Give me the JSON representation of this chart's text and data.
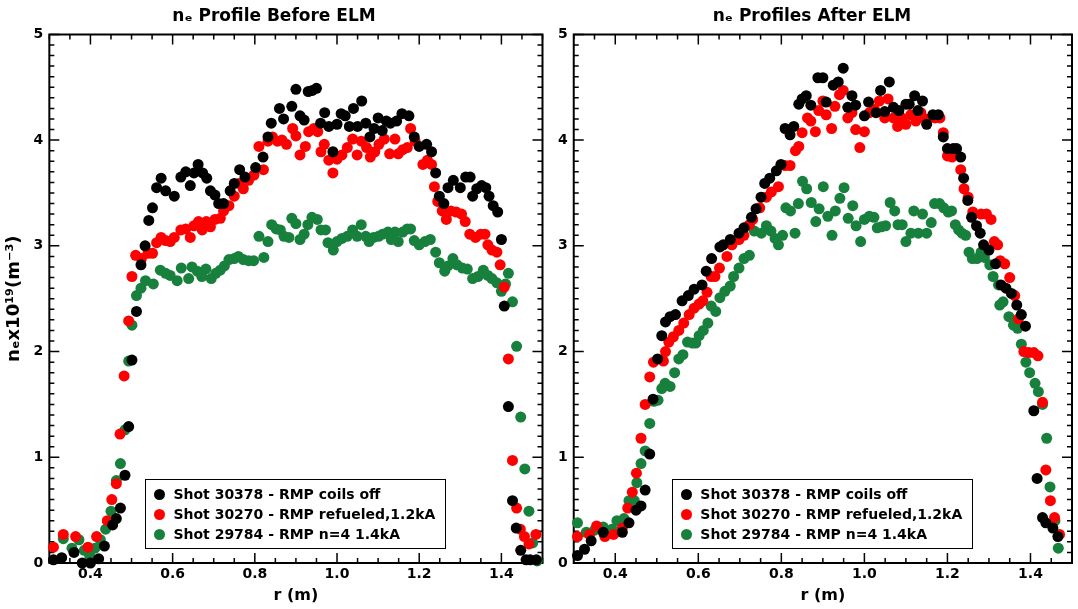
{
  "chart_data": [
    {
      "type": "scatter",
      "title": "nₑ Profile Before ELM",
      "xlabel": "r (m)",
      "ylabel": "nₑx10¹⁹(m⁻³)",
      "xlim": [
        0.3,
        1.5
      ],
      "ylim": [
        0,
        5
      ],
      "xticks": [
        {
          "value": 0.3,
          "label": null
        },
        {
          "value": 0.35,
          "label": null
        },
        0.4,
        {
          "value": 0.45,
          "label": null
        },
        {
          "value": 0.5,
          "label": null
        },
        {
          "value": 0.55,
          "label": null
        },
        0.6,
        {
          "value": 0.65,
          "label": null
        },
        {
          "value": 0.7,
          "label": null
        },
        {
          "value": 0.75,
          "label": null
        },
        0.8,
        {
          "value": 0.85,
          "label": null
        },
        {
          "value": 0.9,
          "label": null
        },
        {
          "value": 0.95,
          "label": null
        },
        {
          "value": 1,
          "label": "1.0"
        },
        {
          "value": 1.05,
          "label": null
        },
        {
          "value": 1.1,
          "label": null
        },
        {
          "value": 1.15,
          "label": null
        },
        1.2,
        {
          "value": 1.25,
          "label": null
        },
        {
          "value": 1.3,
          "label": null
        },
        {
          "value": 1.35,
          "label": null
        },
        1.4,
        {
          "value": 1.45,
          "label": null
        },
        {
          "value": 1.5,
          "label": null
        }
      ],
      "yticks": [
        0,
        {
          "value": 0.1,
          "label": null
        },
        {
          "value": 0.2,
          "label": null
        },
        {
          "value": 0.3,
          "label": null
        },
        {
          "value": 0.4,
          "label": null
        },
        {
          "value": 0.5,
          "label": null
        },
        {
          "value": 0.6,
          "label": null
        },
        {
          "value": 0.7,
          "label": null
        },
        {
          "value": 0.8,
          "label": null
        },
        {
          "value": 0.9,
          "label": null
        },
        1,
        {
          "value": 1.1,
          "label": null
        },
        {
          "value": 1.2,
          "label": null
        },
        {
          "value": 1.3,
          "label": null
        },
        {
          "value": 1.4,
          "label": null
        },
        {
          "value": 1.5,
          "label": null
        },
        {
          "value": 1.6,
          "label": null
        },
        {
          "value": 1.7,
          "label": null
        },
        {
          "value": 1.8,
          "label": null
        },
        {
          "value": 1.9,
          "label": null
        },
        2,
        {
          "value": 2.1,
          "label": null
        },
        {
          "value": 2.2,
          "label": null
        },
        {
          "value": 2.3,
          "label": null
        },
        {
          "value": 2.4,
          "label": null
        },
        {
          "value": 2.5,
          "label": null
        },
        {
          "value": 2.6,
          "label": null
        },
        {
          "value": 2.7,
          "label": null
        },
        {
          "value": 2.8,
          "label": null
        },
        {
          "value": 2.9,
          "label": null
        },
        3,
        {
          "value": 3.1,
          "label": null
        },
        {
          "value": 3.2,
          "label": null
        },
        {
          "value": 3.3,
          "label": null
        },
        {
          "value": 3.4,
          "label": null
        },
        {
          "value": 3.5,
          "label": null
        },
        {
          "value": 3.6,
          "label": null
        },
        {
          "value": 3.7,
          "label": null
        },
        {
          "value": 3.8,
          "label": null
        },
        {
          "value": 3.9,
          "label": null
        },
        4,
        {
          "value": 4.1,
          "label": null
        },
        {
          "value": 4.2,
          "label": null
        },
        {
          "value": 4.3,
          "label": null
        },
        {
          "value": 4.4,
          "label": null
        },
        {
          "value": 4.5,
          "label": null
        },
        {
          "value": 4.6,
          "label": null
        },
        {
          "value": 4.7,
          "label": null
        },
        {
          "value": 4.8,
          "label": null
        },
        {
          "value": 4.9,
          "label": null
        },
        5
      ],
      "grid": false,
      "legend": "bottom",
      "marker": "circle",
      "series": [
        {
          "name": "Shot 30378 - RMP coils off",
          "color": "#000000",
          "x": [
            0.31,
            0.33,
            0.36,
            0.38,
            0.4,
            0.42,
            0.434,
            0.454,
            0.463,
            0.473,
            0.484,
            0.493,
            0.501,
            0.512,
            0.523,
            0.533,
            0.542,
            0.551,
            0.561,
            0.572,
            0.583,
            0.604,
            0.62,
            0.632,
            0.643,
            0.652,
            0.662,
            0.673,
            0.683,
            0.692,
            0.703,
            0.712,
            0.724,
            0.74,
            0.75,
            0.763,
            0.776,
            0.802,
            0.82,
            0.832,
            0.84,
            0.86,
            0.87,
            0.89,
            0.9,
            0.91,
            0.92,
            0.93,
            0.94,
            0.95,
            0.96,
            0.97,
            0.98,
            0.99,
            1.0,
            1.01,
            1.02,
            1.03,
            1.04,
            1.05,
            1.06,
            1.07,
            1.08,
            1.09,
            1.1,
            1.11,
            1.12,
            1.13,
            1.145,
            1.158,
            1.175,
            1.188,
            1.2,
            1.218,
            1.23,
            1.24,
            1.249,
            1.26,
            1.27,
            1.283,
            1.3,
            1.313,
            1.324,
            1.33,
            1.34,
            1.352,
            1.362,
            1.37,
            1.38,
            1.391,
            1.4,
            1.407,
            1.417,
            1.427,
            1.436,
            1.447,
            1.46,
            1.47,
            1.485
          ],
          "values": [
            0.03,
            0.05,
            0.1,
            0.0,
            0.0,
            0.04,
            0.16,
            0.36,
            0.42,
            0.52,
            0.83,
            1.29,
            1.92,
            2.38,
            2.82,
            3.0,
            3.24,
            3.36,
            3.55,
            3.64,
            3.52,
            3.47,
            3.65,
            3.7,
            3.57,
            3.69,
            3.77,
            3.69,
            3.64,
            3.52,
            3.48,
            3.4,
            3.4,
            3.52,
            3.59,
            3.72,
            3.65,
            3.74,
            3.84,
            4.03,
            4.16,
            4.3,
            4.2,
            4.32,
            4.48,
            4.23,
            4.19,
            4.46,
            4.47,
            4.49,
            4.16,
            4.26,
            4.13,
            3.89,
            4.15,
            4.25,
            4.23,
            4.13,
            4.3,
            4.13,
            4.37,
            4.16,
            4.03,
            4.11,
            4.21,
            4.09,
            4.18,
            4.16,
            4.18,
            4.25,
            4.23,
            4.03,
            3.94,
            3.96,
            3.89,
            3.69,
            3.47,
            3.4,
            3.55,
            3.62,
            3.55,
            3.65,
            3.65,
            3.47,
            3.54,
            3.57,
            3.55,
            3.47,
            3.38,
            3.32,
            3.06,
            2.43,
            1.48,
            0.59,
            0.33,
            0.12,
            0.03,
            0.03,
            0.03
          ]
        },
        {
          "name": "Shot 30270 - RMP refueled,1.2kA",
          "color": "#ff0000",
          "x": [
            0.31,
            0.334,
            0.364,
            0.394,
            0.415,
            0.441,
            0.452,
            0.463,
            0.472,
            0.482,
            0.493,
            0.501,
            0.51,
            0.524,
            0.54,
            0.551,
            0.561,
            0.572,
            0.583,
            0.594,
            0.604,
            0.62,
            0.632,
            0.643,
            0.652,
            0.663,
            0.672,
            0.682,
            0.692,
            0.703,
            0.716,
            0.724,
            0.737,
            0.75,
            0.761,
            0.772,
            0.785,
            0.798,
            0.81,
            0.821,
            0.832,
            0.843,
            0.855,
            0.866,
            0.877,
            0.892,
            0.9,
            0.91,
            0.923,
            0.931,
            0.944,
            0.953,
            0.961,
            0.969,
            0.98,
            0.99,
            1.0,
            1.012,
            1.025,
            1.038,
            1.049,
            1.059,
            1.072,
            1.081,
            1.092,
            1.102,
            1.115,
            1.128,
            1.141,
            1.149,
            1.16,
            1.171,
            1.179,
            1.19,
            1.2,
            1.209,
            1.22,
            1.23,
            1.237,
            1.245,
            1.256,
            1.266,
            1.277,
            1.29,
            1.303,
            1.312,
            1.323,
            1.337,
            1.35,
            1.36,
            1.367,
            1.377,
            1.389,
            1.397,
            1.407,
            1.417,
            1.427,
            1.437,
            1.446,
            1.456,
            1.467,
            1.484
          ],
          "values": [
            0.15,
            0.27,
            0.25,
            0.15,
            0.25,
            0.4,
            0.6,
            0.75,
            1.22,
            1.77,
            2.29,
            2.71,
            2.91,
            2.88,
            2.93,
            2.93,
            3.03,
            3.08,
            3.05,
            3.04,
            3.08,
            3.15,
            3.16,
            3.08,
            3.19,
            3.23,
            3.15,
            3.23,
            3.18,
            3.25,
            3.26,
            3.33,
            3.38,
            3.47,
            3.59,
            3.54,
            3.62,
            3.67,
            3.94,
            3.72,
            3.99,
            4.03,
            3.99,
            4.0,
            3.96,
            4.11,
            4.04,
            3.86,
            3.94,
            4.08,
            4.11,
            4.08,
            3.89,
            3.96,
            3.81,
            3.69,
            3.82,
            3.86,
            3.93,
            4.01,
            3.86,
            3.99,
            3.93,
            3.84,
            3.89,
            3.96,
            4.01,
            3.87,
            4.01,
            3.87,
            3.91,
            3.93,
            4.11,
            3.99,
            null,
            3.77,
            3.81,
            3.77,
            3.56,
            3.42,
            3.33,
            3.25,
            3.33,
            3.32,
            3.3,
            3.23,
            3.11,
            3.08,
            3.11,
            3.11,
            3.01,
            2.96,
            2.94,
            2.82,
            2.61,
            1.93,
            0.97,
            0.52,
            0.32,
            0.25,
            0.18,
            0.27
          ]
        },
        {
          "name": "Shot 29784 - RMP n=4 1.4kA",
          "color": "#17803d",
          "x": [
            0.334,
            0.355,
            0.372,
            0.385,
            0.398,
            0.411,
            0.424,
            0.437,
            0.45,
            0.463,
            0.473,
            0.484,
            0.493,
            0.501,
            0.512,
            0.523,
            0.534,
            0.553,
            0.57,
            0.583,
            0.594,
            0.611,
            0.621,
            0.639,
            0.647,
            0.66,
            0.671,
            0.681,
            0.694,
            0.705,
            0.716,
            0.726,
            0.737,
            0.75,
            0.76,
            0.772,
            0.785,
            0.797,
            0.81,
            0.822,
            0.832,
            0.841,
            0.852,
            0.862,
            0.871,
            0.883,
            0.89,
            0.9,
            0.91,
            0.92,
            0.929,
            0.939,
            0.952,
            0.961,
            0.972,
            0.978,
            0.991,
            1.0,
            1.012,
            1.025,
            1.038,
            1.049,
            1.059,
            1.07,
            1.078,
            1.089,
            1.101,
            1.111,
            1.124,
            1.132,
            1.141,
            1.149,
            1.16,
            1.171,
            1.179,
            1.188,
            1.2,
            1.214,
            1.227,
            1.24,
            1.249,
            1.262,
            1.27,
            1.282,
            1.292,
            1.305,
            1.317,
            1.33,
            1.343,
            1.356,
            1.367,
            1.377,
            1.389,
            1.4,
            1.41,
            1.417,
            1.427,
            1.437,
            1.447,
            1.457,
            1.467,
            1.476,
            1.487
          ],
          "values": [
            0.23,
            0.14,
            0.22,
            0.12,
            0.07,
            0.14,
            0.22,
            0.32,
            0.49,
            0.78,
            0.94,
            1.26,
            1.91,
            2.25,
            2.53,
            2.6,
            2.67,
            2.64,
            2.77,
            2.74,
            2.72,
            2.67,
            2.79,
            2.69,
            2.8,
            2.76,
            2.71,
            2.78,
            2.69,
            2.74,
            2.77,
            2.81,
            2.87,
            2.88,
            2.9,
            2.87,
            2.86,
            2.86,
            3.09,
            2.89,
            3.04,
            3.2,
            3.16,
            3.15,
            3.09,
            3.08,
            3.26,
            3.21,
            3.06,
            3.11,
            3.2,
            3.27,
            3.25,
            3.15,
            3.15,
            3.03,
            2.96,
            3.04,
            3.07,
            3.09,
            3.15,
            3.09,
            3.2,
            3.09,
            3.04,
            3.08,
            3.09,
            3.11,
            3.13,
            3.06,
            3.13,
            3.04,
            3.13,
            3.16,
            3.16,
            3.05,
            3.01,
            3.04,
            3.06,
            2.94,
            2.84,
            2.76,
            2.81,
            2.88,
            2.82,
            2.79,
            2.78,
            2.69,
            2.71,
            2.77,
            2.72,
            2.69,
            2.65,
            2.57,
            2.64,
            2.74,
            2.47,
            2.05,
            1.38,
            0.89,
            0.49,
            0.19,
            0.02
          ]
        }
      ]
    },
    {
      "type": "scatter",
      "title": "nₑ Profiles After ELM",
      "xlabel": "r (m)",
      "xlim": [
        0.3,
        1.5
      ],
      "ylim": [
        0,
        5
      ],
      "xticks": [
        {
          "value": 0.3,
          "label": null
        },
        {
          "value": 0.35,
          "label": null
        },
        0.4,
        {
          "value": 0.45,
          "label": null
        },
        {
          "value": 0.5,
          "label": null
        },
        {
          "value": 0.55,
          "label": null
        },
        0.6,
        {
          "value": 0.65,
          "label": null
        },
        {
          "value": 0.7,
          "label": null
        },
        {
          "value": 0.75,
          "label": null
        },
        0.8,
        {
          "value": 0.85,
          "label": null
        },
        {
          "value": 0.9,
          "label": null
        },
        {
          "value": 0.95,
          "label": null
        },
        {
          "value": 1,
          "label": "1.0"
        },
        {
          "value": 1.05,
          "label": null
        },
        {
          "value": 1.1,
          "label": null
        },
        {
          "value": 1.15,
          "label": null
        },
        1.2,
        {
          "value": 1.25,
          "label": null
        },
        {
          "value": 1.3,
          "label": null
        },
        {
          "value": 1.35,
          "label": null
        },
        1.4,
        {
          "value": 1.45,
          "label": null
        },
        {
          "value": 1.5,
          "label": null
        }
      ],
      "yticks": [
        0,
        {
          "value": 0.1,
          "label": null
        },
        {
          "value": 0.2,
          "label": null
        },
        {
          "value": 0.3,
          "label": null
        },
        {
          "value": 0.4,
          "label": null
        },
        {
          "value": 0.5,
          "label": null
        },
        {
          "value": 0.6,
          "label": null
        },
        {
          "value": 0.7,
          "label": null
        },
        {
          "value": 0.8,
          "label": null
        },
        {
          "value": 0.9,
          "label": null
        },
        1,
        {
          "value": 1.1,
          "label": null
        },
        {
          "value": 1.2,
          "label": null
        },
        {
          "value": 1.3,
          "label": null
        },
        {
          "value": 1.4,
          "label": null
        },
        {
          "value": 1.5,
          "label": null
        },
        {
          "value": 1.6,
          "label": null
        },
        {
          "value": 1.7,
          "label": null
        },
        {
          "value": 1.8,
          "label": null
        },
        {
          "value": 1.9,
          "label": null
        },
        2,
        {
          "value": 2.1,
          "label": null
        },
        {
          "value": 2.2,
          "label": null
        },
        {
          "value": 2.3,
          "label": null
        },
        {
          "value": 2.4,
          "label": null
        },
        {
          "value": 2.5,
          "label": null
        },
        {
          "value": 2.6,
          "label": null
        },
        {
          "value": 2.7,
          "label": null
        },
        {
          "value": 2.8,
          "label": null
        },
        {
          "value": 2.9,
          "label": null
        },
        3,
        {
          "value": 3.1,
          "label": null
        },
        {
          "value": 3.2,
          "label": null
        },
        {
          "value": 3.3,
          "label": null
        },
        {
          "value": 3.4,
          "label": null
        },
        {
          "value": 3.5,
          "label": null
        },
        {
          "value": 3.6,
          "label": null
        },
        {
          "value": 3.7,
          "label": null
        },
        {
          "value": 3.8,
          "label": null
        },
        {
          "value": 3.9,
          "label": null
        },
        4,
        {
          "value": 4.1,
          "label": null
        },
        {
          "value": 4.2,
          "label": null
        },
        {
          "value": 4.3,
          "label": null
        },
        {
          "value": 4.4,
          "label": null
        },
        {
          "value": 4.5,
          "label": null
        },
        {
          "value": 4.6,
          "label": null
        },
        {
          "value": 4.7,
          "label": null
        },
        {
          "value": 4.8,
          "label": null
        },
        {
          "value": 4.9,
          "label": null
        },
        5
      ],
      "grid": false,
      "legend": "bottom",
      "marker": "circle",
      "series": [
        {
          "name": "Shot 30378 - RMP coils off",
          "color": "#000000",
          "x": [
            0.309,
            0.326,
            0.342,
            0.371,
            0.417,
            0.433,
            0.45,
            0.462,
            0.472,
            0.483,
            0.491,
            0.502,
            0.512,
            0.521,
            0.532,
            0.545,
            0.561,
            0.576,
            0.59,
            0.609,
            0.619,
            0.632,
            0.652,
            0.66,
            0.677,
            0.698,
            0.71,
            0.728,
            0.739,
            0.751,
            0.76,
            0.772,
            0.788,
            0.799,
            0.809,
            0.821,
            0.83,
            0.842,
            0.85,
            0.86,
            0.871,
            0.888,
            0.9,
            0.908,
            0.925,
            0.937,
            0.949,
            0.96,
            0.97,
            0.979,
            1.0,
            1.01,
            1.028,
            1.039,
            1.049,
            1.06,
            1.07,
            1.083,
            1.1,
            1.108,
            1.121,
            1.129,
            1.14,
            1.15,
            1.165,
            1.178,
            1.19,
            1.2,
            1.214,
            1.222,
            1.232,
            1.239,
            1.249,
            1.258,
            1.27,
            1.279,
            1.287,
            1.3,
            1.316,
            1.329,
            1.341,
            1.354,
            1.367,
            1.378,
            1.388,
            1.408,
            1.416,
            1.429,
            1.437,
            1.454,
            1.466
          ],
          "values": [
            0.07,
            0.13,
            0.21,
            0.29,
            0.29,
            0.38,
            0.5,
            0.54,
            0.69,
            1.03,
            1.55,
            1.93,
            2.15,
            2.28,
            2.33,
            2.35,
            2.48,
            2.53,
            2.59,
            2.63,
            2.76,
            2.88,
            2.99,
            3.01,
            3.06,
            3.12,
            3.17,
            3.27,
            3.35,
            3.46,
            3.59,
            3.64,
            3.71,
            3.77,
            4.11,
            4.05,
            4.13,
            4.34,
            4.39,
            4.42,
            4.33,
            4.59,
            4.59,
            4.36,
            4.52,
            4.55,
            4.68,
            4.31,
            4.42,
            4.33,
            4.23,
            4.36,
            4.26,
            4.47,
            4.27,
            4.55,
            4.31,
            4.28,
            4.34,
            4.34,
            4.42,
            4.28,
            4.37,
            4.15,
            4.24,
            4.24,
            4.03,
            3.92,
            3.92,
            3.92,
            3.84,
            3.64,
            3.43,
            3.27,
            3.19,
            3.12,
            3.01,
            2.96,
            2.83,
            2.63,
            2.6,
            2.55,
            2.44,
            2.35,
            2.24,
            1.44,
            0.8,
            0.43,
            0.38,
            0.33,
            0.25
          ]
        },
        {
          "name": "Shot 30270 - RMP refueled,1.2kA",
          "color": "#ff0000",
          "x": [
            0.309,
            0.338,
            0.355,
            0.375,
            0.396,
            0.417,
            0.43,
            0.441,
            0.451,
            0.462,
            0.472,
            0.483,
            0.492,
            0.503,
            0.516,
            0.521,
            0.529,
            0.54,
            0.553,
            0.565,
            0.578,
            0.59,
            0.602,
            0.611,
            0.621,
            0.631,
            0.64,
            0.651,
            0.669,
            0.681,
            0.698,
            0.71,
            0.723,
            0.731,
            0.748,
            0.764,
            0.776,
            0.793,
            0.809,
            0.821,
            0.834,
            0.842,
            0.85,
            0.863,
            0.871,
            0.882,
            0.89,
            0.9,
            0.908,
            0.921,
            0.929,
            0.94,
            0.949,
            0.96,
            0.97,
            0.979,
            0.989,
            1.0,
            1.012,
            1.024,
            1.036,
            1.049,
            1.057,
            1.07,
            1.08,
            1.09,
            1.1,
            1.112,
            1.124,
            1.136,
            1.147,
            1.157,
            1.17,
            1.182,
            1.19,
            1.2,
            1.211,
            1.225,
            1.232,
            1.24,
            1.25,
            1.261,
            1.271,
            1.281,
            1.294,
            1.305,
            1.313,
            1.321,
            1.327,
            1.338,
            1.35,
            1.362,
            1.371,
            1.384,
            1.396,
            1.408,
            1.418,
            1.429,
            1.437,
            1.448,
            1.458,
            1.47
          ],
          "values": [
            0.25,
            0.27,
            0.35,
            0.25,
            0.27,
            0.33,
            0.52,
            0.67,
            0.85,
            1.18,
            1.5,
            1.76,
            1.9,
            null,
            1.91,
            2.0,
            2.09,
            2.14,
            2.2,
            2.27,
            2.35,
            2.41,
            2.45,
            2.48,
            2.56,
            2.71,
            2.71,
            2.79,
            2.9,
            3.01,
            3.06,
            3.1,
            3.2,
            3.25,
            3.36,
            3.46,
            3.51,
            3.56,
            3.76,
            3.76,
            3.9,
            3.94,
            4.07,
            4.21,
            4.18,
            4.08,
            4.28,
            4.37,
            4.24,
            4.11,
            4.32,
            4.43,
            4.47,
            4.21,
            4.26,
            4.1,
            3.93,
            4.08,
            4.26,
            4.29,
            4.37,
            4.21,
            4.39,
            4.21,
            4.13,
            4.21,
            4.15,
            4.24,
            4.18,
            4.26,
            4.2,
            null,
            4.21,
            4.21,
            4.07,
            3.85,
            3.84,
            null,
            3.72,
            3.54,
            3.46,
            3.32,
            null,
            3.3,
            3.3,
            3.25,
            3.04,
            3.01,
            2.86,
            2.83,
            2.7,
            2.53,
            2.31,
            2.0,
            1.99,
            1.99,
            1.96,
            1.52,
            0.88,
            0.59,
            0.43,
            0.27
          ]
        },
        {
          "name": "Shot 29784 - RMP n=4 1.4kA",
          "color": "#17803d",
          "x": [
            0.309,
            0.33,
            0.35,
            0.371,
            0.392,
            0.404,
            0.421,
            0.433,
            0.446,
            0.452,
            0.462,
            0.472,
            0.483,
            0.493,
            0.503,
            0.512,
            0.52,
            0.532,
            0.543,
            0.553,
            0.563,
            0.574,
            0.586,
            0.594,
            0.602,
            0.612,
            0.623,
            0.631,
            0.642,
            0.652,
            0.664,
            0.677,
            0.685,
            0.698,
            0.71,
            0.723,
            0.735,
            0.752,
            0.764,
            0.775,
            0.785,
            0.793,
            0.803,
            0.811,
            0.822,
            0.833,
            0.841,
            0.851,
            0.861,
            0.872,
            0.883,
            0.891,
            0.901,
            0.912,
            0.922,
            0.93,
            0.941,
            0.951,
            0.961,
            0.972,
            0.98,
            0.991,
            1.0,
            1.012,
            1.023,
            1.031,
            1.041,
            1.051,
            1.062,
            1.073,
            1.081,
            1.091,
            1.1,
            1.112,
            1.119,
            1.13,
            1.14,
            1.15,
            1.161,
            1.169,
            1.181,
            1.191,
            1.202,
            1.21,
            1.219,
            1.227,
            1.235,
            1.244,
            1.252,
            1.26,
            1.271,
            1.281,
            1.289,
            1.302,
            1.31,
            1.323,
            1.326,
            1.334,
            1.348,
            1.359,
            1.369,
            1.378,
            1.389,
            1.398,
            1.411,
            1.419,
            1.429,
            1.439,
            1.447,
            1.459,
            1.467
          ],
          "values": [
            0.38,
            0.29,
            0.31,
            0.34,
            0.32,
            0.4,
            0.42,
            0.59,
            0.59,
            0.76,
            0.94,
            1.06,
            1.32,
            1.53,
            1.54,
            1.65,
            1.7,
            1.67,
            1.8,
            1.93,
            1.97,
            2.09,
            2.08,
            2.08,
            2.15,
            2.2,
            2.27,
            2.43,
            2.38,
            2.51,
            2.57,
            2.62,
            2.71,
            2.79,
            2.88,
            2.91,
            3.14,
            3.12,
            3.19,
            3.14,
            3.07,
            3.01,
            3.1,
            3.36,
            3.33,
            3.12,
            3.4,
            3.61,
            3.54,
            3.41,
            3.23,
            3.35,
            3.56,
            3.28,
            3.1,
            3.33,
            3.45,
            3.55,
            3.26,
            3.38,
            3.19,
            3.04,
            3.25,
            3.28,
            3.27,
            3.17,
            3.18,
            3.19,
            3.41,
            3.33,
            3.2,
            3.2,
            3.04,
            3.12,
            3.33,
            3.12,
            3.3,
            3.12,
            3.22,
            3.4,
            3.4,
            3.36,
            3.32,
            3.33,
            3.2,
            3.15,
            3.12,
            3.1,
            2.94,
            2.88,
            2.88,
            2.94,
            2.89,
            2.82,
            2.71,
            2.63,
            2.44,
            2.47,
            2.33,
            2.25,
            2.22,
            2.07,
            1.9,
            1.8,
            1.7,
            1.62,
            1.5,
            1.18,
            0.72,
            0.4,
            0.14
          ]
        }
      ]
    }
  ]
}
